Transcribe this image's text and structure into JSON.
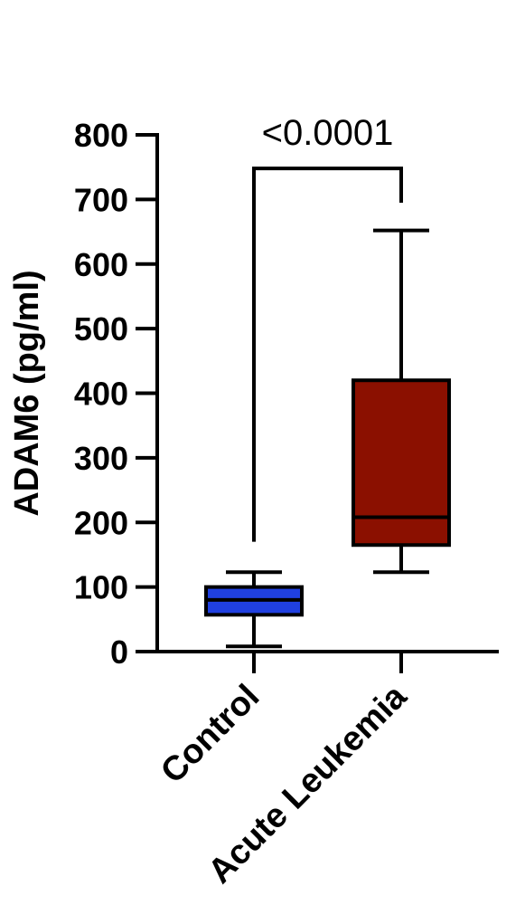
{
  "chart_data": {
    "type": "box",
    "ylabel": "ADAM6 (pg/ml)",
    "ylim": [
      0,
      800
    ],
    "yticks": [
      "0",
      "100",
      "200",
      "300",
      "400",
      "500",
      "600",
      "700",
      "800"
    ],
    "categories": [
      "Control",
      "Acute Leukemia"
    ],
    "series": [
      {
        "category": "Control",
        "whisker_low": 8,
        "q1": 57,
        "median": 80,
        "q3": 100,
        "whisker_high": 123,
        "color": "#2040e0"
      },
      {
        "category": "Acute Leukemia",
        "whisker_low": 123,
        "q1": 165,
        "median": 208,
        "q3": 420,
        "whisker_high": 652,
        "color": "#8b1000"
      }
    ],
    "significance": {
      "label": "<0.0001",
      "from": "Control",
      "to": "Acute Leukemia",
      "left_drop_to": 170,
      "right_drop_to": 695,
      "bar_level": 748
    }
  }
}
